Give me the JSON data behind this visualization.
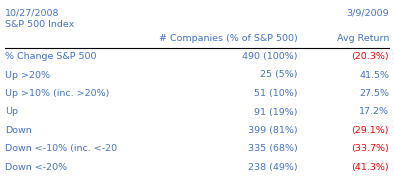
{
  "date_left": "10/27/2008",
  "date_right": "3/9/2009",
  "subtitle": "S&P 500 Index",
  "rows": [
    {
      "label": "% Change S&P 500",
      "companies": "490 (100%)",
      "avg_return": "(20.3%)",
      "label_color": "#4472C4",
      "return_color": "#FF0000"
    },
    {
      "label": "Up >20%",
      "companies": "25 (5%)",
      "avg_return": "41.5%",
      "label_color": "#4472C4",
      "return_color": "#4472C4"
    },
    {
      "label": "Up >10% (inc. >20%)",
      "companies": "51 (10%)",
      "avg_return": "27.5%",
      "label_color": "#4472C4",
      "return_color": "#4472C4"
    },
    {
      "label": "Up",
      "companies": "91 (19%)",
      "avg_return": "17.2%",
      "label_color": "#4472C4",
      "return_color": "#4472C4"
    },
    {
      "label": "Down",
      "companies": "399 (81%)",
      "avg_return": "(29.1%)",
      "label_color": "#4472C4",
      "return_color": "#FF0000"
    },
    {
      "label": "Down <-10% (inc. <-20",
      "companies": "335 (68%)",
      "avg_return": "(33.7%)",
      "label_color": "#4472C4",
      "return_color": "#FF0000"
    },
    {
      "label": "Down <-20%",
      "companies": "238 (49%)",
      "avg_return": "(41.3%)",
      "label_color": "#4472C4",
      "return_color": "#FF0000"
    }
  ],
  "header_color": "#4472C4",
  "bg_color": "#FFFFFF",
  "font_size": 6.8,
  "line_color": "#000000"
}
